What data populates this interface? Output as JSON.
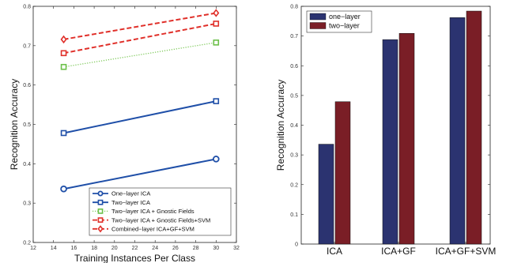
{
  "chart_data": [
    {
      "type": "line",
      "xlabel": "Training Instances Per Class",
      "ylabel": "Recognition Accuracy",
      "xlim": [
        12,
        32
      ],
      "ylim": [
        0.2,
        0.8
      ],
      "xticks": [
        12,
        14,
        16,
        18,
        20,
        22,
        24,
        26,
        28,
        30,
        32
      ],
      "yticks": [
        0.2,
        0.3,
        0.4,
        0.5,
        0.6,
        0.7,
        0.8
      ],
      "x": [
        15,
        30
      ],
      "legend_position": "bottom-right",
      "grid": false,
      "series": [
        {
          "name": "One−layer ICA",
          "values": [
            0.336,
            0.412
          ],
          "color": "#1f4fa8",
          "marker": "circle",
          "dash": "solid"
        },
        {
          "name": "Two−layer ICA",
          "values": [
            0.478,
            0.559
          ],
          "color": "#1f4fa8",
          "marker": "square",
          "dash": "solid"
        },
        {
          "name": "Two−layer ICA + Gnostic Fields",
          "values": [
            0.646,
            0.708
          ],
          "color": "#7ec95a",
          "marker": "square",
          "dash": "dotted"
        },
        {
          "name": "Two−layer ICA + Gnostic Fields+SVM",
          "values": [
            0.681,
            0.756
          ],
          "color": "#e0302a",
          "marker": "square",
          "dash": "dashed"
        },
        {
          "name": "Combined−layer ICA+GF+SVM",
          "values": [
            0.716,
            0.783
          ],
          "color": "#e0302a",
          "marker": "diamond",
          "dash": "dashed"
        }
      ]
    },
    {
      "type": "bar",
      "ylabel": "Recognition Accuracy",
      "ylim": [
        0,
        0.8
      ],
      "yticks": [
        0,
        0.1,
        0.2,
        0.3,
        0.4,
        0.5,
        0.6,
        0.7,
        0.8
      ],
      "categories": [
        "ICA",
        "ICA+GF",
        "ICA+GF+SVM"
      ],
      "legend_position": "top-left",
      "grid": false,
      "series": [
        {
          "name": "one−layer",
          "values": [
            0.336,
            0.688,
            0.762
          ],
          "color": "#2b3370"
        },
        {
          "name": "two−layer",
          "values": [
            0.479,
            0.709,
            0.784
          ],
          "color": "#7a1e26"
        }
      ]
    }
  ]
}
